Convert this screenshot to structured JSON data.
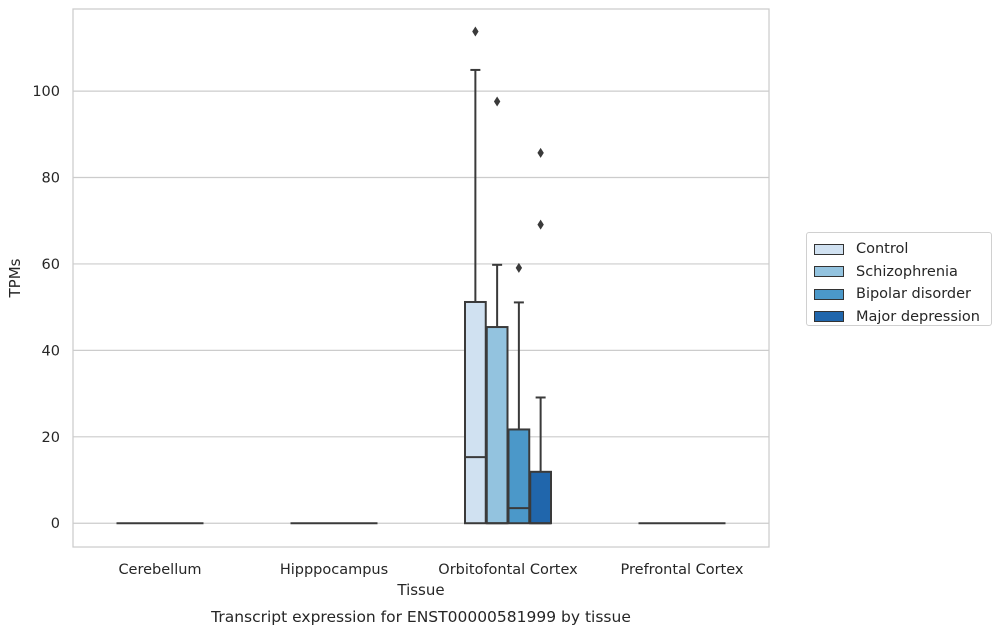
{
  "chart_data": {
    "type": "box",
    "title": "Transcript expression for ENST00000581999 by tissue",
    "xlabel": "Tissue",
    "ylabel": "TPMs",
    "ylim": [
      -5.5,
      119
    ],
    "yticks": [
      0,
      20,
      40,
      60,
      80,
      100
    ],
    "grid": "horizontal",
    "legend_position": "outside-right",
    "categories": [
      "Cerebellum",
      "Hipppocampus",
      "Orbitofontal Cortex",
      "Prefrontal Cortex"
    ],
    "series": [
      {
        "name": "Control",
        "color": "#d0e1f1",
        "boxes": [
          null,
          null,
          {
            "whisker_low": 0,
            "q1": 0,
            "median": 15.3,
            "q3": 51.2,
            "whisker_high": 104.9,
            "outliers": [
              113.8
            ]
          },
          null
        ]
      },
      {
        "name": "Schizophrenia",
        "color": "#93c3df",
        "boxes": [
          null,
          null,
          {
            "whisker_low": 0,
            "q1": 0,
            "median": 0,
            "q3": 45.4,
            "whisker_high": 59.8,
            "outliers": [
              97.6
            ]
          },
          null
        ]
      },
      {
        "name": "Bipolar disorder",
        "color": "#4b98c9",
        "boxes": [
          null,
          null,
          {
            "whisker_low": 0,
            "q1": 0,
            "median": 3.5,
            "q3": 21.7,
            "whisker_high": 51.1,
            "outliers": [
              59.1
            ]
          },
          null
        ]
      },
      {
        "name": "Major depression",
        "color": "#2066ac",
        "boxes": [
          null,
          null,
          {
            "whisker_low": 0,
            "q1": 0,
            "median": 0,
            "q3": 11.9,
            "whisker_high": 29.1,
            "outliers": [
              69.1,
              85.7
            ]
          },
          null
        ]
      }
    ],
    "flat_groups": [
      0,
      1,
      3
    ]
  }
}
